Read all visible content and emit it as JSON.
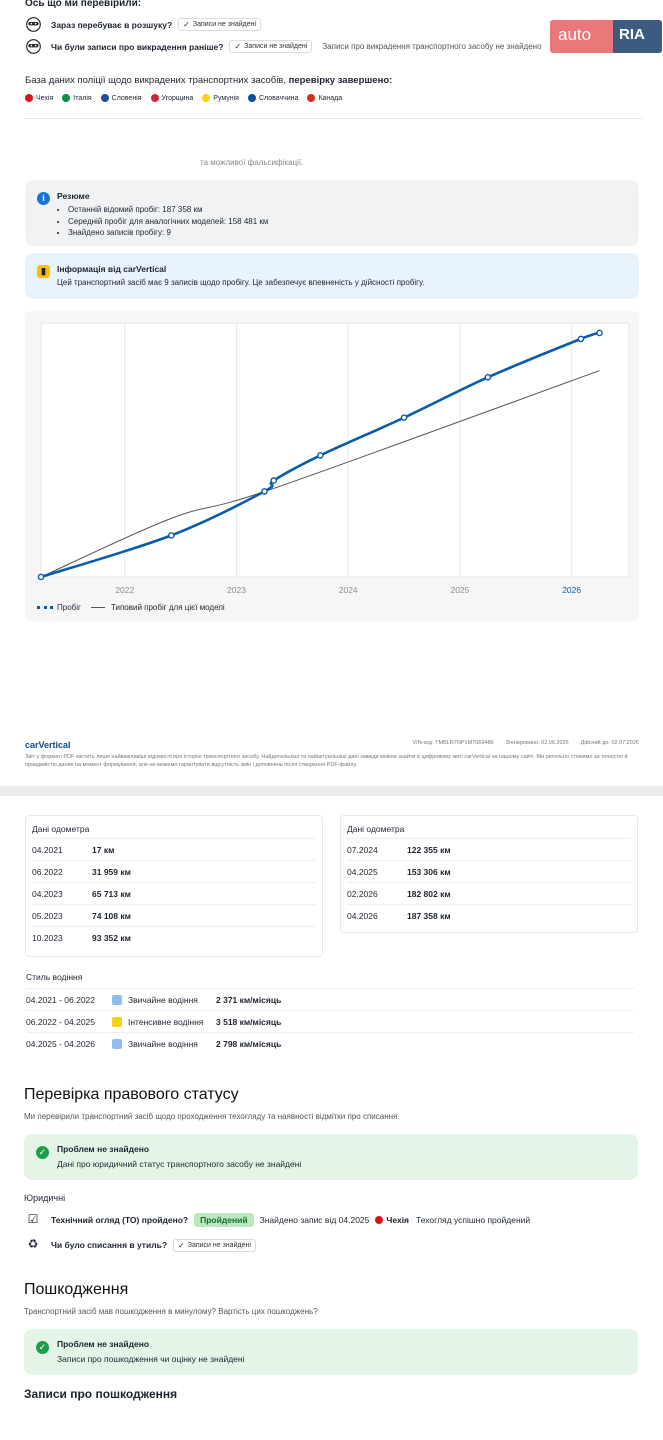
{
  "header": {
    "checked_title": "Ось що ми перевірили:",
    "rows": [
      {
        "label": "Зараз перебуває в розшуку?",
        "pill": "Записи не знайдені",
        "note": ""
      },
      {
        "label": "Чи були записи про викрадення раніше?",
        "pill": "Записи не знайдені",
        "note": "Записи про викрадення транспортного засобу не знайдено"
      }
    ]
  },
  "logo": {
    "auto": "auto",
    "ria": "RIA"
  },
  "database": {
    "title_plain": "База даних поліції щодо викрадених транспортних засобів, ",
    "title_bold": "перевірку завершено:",
    "countries": [
      {
        "name": "Чехія",
        "color": "#d7141a"
      },
      {
        "name": "Італія",
        "color": "#009246"
      },
      {
        "name": "Словенія",
        "color": "#1a4fa0"
      },
      {
        "name": "Угорщина",
        "color": "#cd2a3e"
      },
      {
        "name": "Румунія",
        "color": "#fcd116"
      },
      {
        "name": "Словаччина",
        "color": "#0b4ea2"
      },
      {
        "name": "Канада",
        "color": "#d52b1e"
      }
    ]
  },
  "mileage_section": {
    "falsification_note": "та можливої фальсифікації.",
    "summary": {
      "title": "Резюме",
      "items": [
        "Останній відомий пробіг: 187 358 км",
        "Середній пробіг для аналогічних моделей: 158 481 км",
        "Знайдено записів пробігу: 9"
      ]
    },
    "info": {
      "title": "Інформація від carVertical",
      "text": "Цей транспортний засіб має 9 записів щодо пробігу. Це забезпечує впевненість у дійсності пробігу."
    }
  },
  "chart_data": {
    "type": "line",
    "x_ticks": [
      "2022",
      "2023",
      "2024",
      "2025",
      "2026"
    ],
    "series": [
      {
        "name": "Пробіг",
        "color": "#0a5ca8",
        "points": [
          {
            "date": "2021-04",
            "km": 17
          },
          {
            "date": "2022-06",
            "km": 31959
          },
          {
            "date": "2023-04",
            "km": 65713
          },
          {
            "date": "2023-05",
            "km": 74108
          },
          {
            "date": "2023-10",
            "km": 93352
          },
          {
            "date": "2024-07",
            "km": 122355
          },
          {
            "date": "2025-04",
            "km": 153306
          },
          {
            "date": "2026-02",
            "km": 182802
          },
          {
            "date": "2026-04",
            "km": 187358
          }
        ]
      },
      {
        "name": "Типовий пробіг для цієї моделі",
        "color": "#555555",
        "points": [
          {
            "date": "2021-04",
            "km": 0
          },
          {
            "date": "2022-06",
            "km": 45000
          },
          {
            "date": "2023-05",
            "km": 68000
          },
          {
            "date": "2026-04",
            "km": 158481
          }
        ]
      }
    ],
    "highlight_tick": "2026",
    "grid": true
  },
  "footer": {
    "brand": "carVertical",
    "vin": "VIN-код: TMBLR7NP1M7069486",
    "generated": "Згенеровано: 02.06.2026",
    "valid": "Дійсний до: 02.07.2026",
    "text": "Звіт у форматі PDF містить лише найважливіші відомості про історію транспортного засобу. Найдетальніші та найактуальніші дані завжди можна знайти в цифровому звіті carVertical на нашому сайті. Ми ретельно стежимо за точністю й правдивістю даних на момент формування, але не можемо гарантувати відсутність змін і доповнень після створення PDF-файлу."
  },
  "odometer": {
    "title": "Дані одометра",
    "left": [
      {
        "date": "04.2021",
        "value": "17 км"
      },
      {
        "date": "06.2022",
        "value": "31 959 км"
      },
      {
        "date": "04.2023",
        "value": "65 713 км"
      },
      {
        "date": "05.2023",
        "value": "74 108 км"
      },
      {
        "date": "10.2023",
        "value": "93 352 км"
      }
    ],
    "right": [
      {
        "date": "07.2024",
        "value": "122 355 км"
      },
      {
        "date": "04.2025",
        "value": "153 306 км"
      },
      {
        "date": "02.2026",
        "value": "182 802 км"
      },
      {
        "date": "04.2026",
        "value": "187 358 км"
      }
    ]
  },
  "driving_style": {
    "title": "Стиль водіння",
    "rows": [
      {
        "period": "04.2021 - 06.2022",
        "color": "#8fbdf0",
        "kind": "Звичайне водіння",
        "rate": "2 371 км/місяць"
      },
      {
        "period": "06.2022 - 04.2025",
        "color": "#f4d21a",
        "kind": "Інтенсивне водіння",
        "rate": "3 518 км/місяць"
      },
      {
        "period": "04.2025 - 04.2026",
        "color": "#8fbdf0",
        "kind": "Звичайне водіння",
        "rate": "2 798 км/місяць"
      }
    ]
  },
  "legal": {
    "title": "Перевірка правового статусу",
    "subtitle": "Ми перевірили транспортний засіб щодо проходження техогляду та наявності відмітки про списання.",
    "box_title": "Проблем не знайдено",
    "box_text": "Дані про юридичний статус транспортного засобу не знайдені",
    "section": "Юридичні",
    "inspection_label": "Технічний огляд (ТО) пройдено?",
    "inspection_badge": "Пройдений",
    "inspection_found": "Знайдено запис від 04.2025",
    "inspection_country": "Чехія",
    "inspection_result": "Техогляд успішно пройдений",
    "scrap_label": "Чи було списання в утиль?",
    "scrap_pill": "Записи не знайдені"
  },
  "damage": {
    "title": "Пошкодження",
    "subtitle": "Транспортний засіб мав пошкодження в минулому? Вартість цих пошкоджень?",
    "box_title": "Проблем не знайдено",
    "box_text": "Записи про пошкодження чи оцінку не знайдені",
    "records_title": "Записи про пошкодження"
  }
}
